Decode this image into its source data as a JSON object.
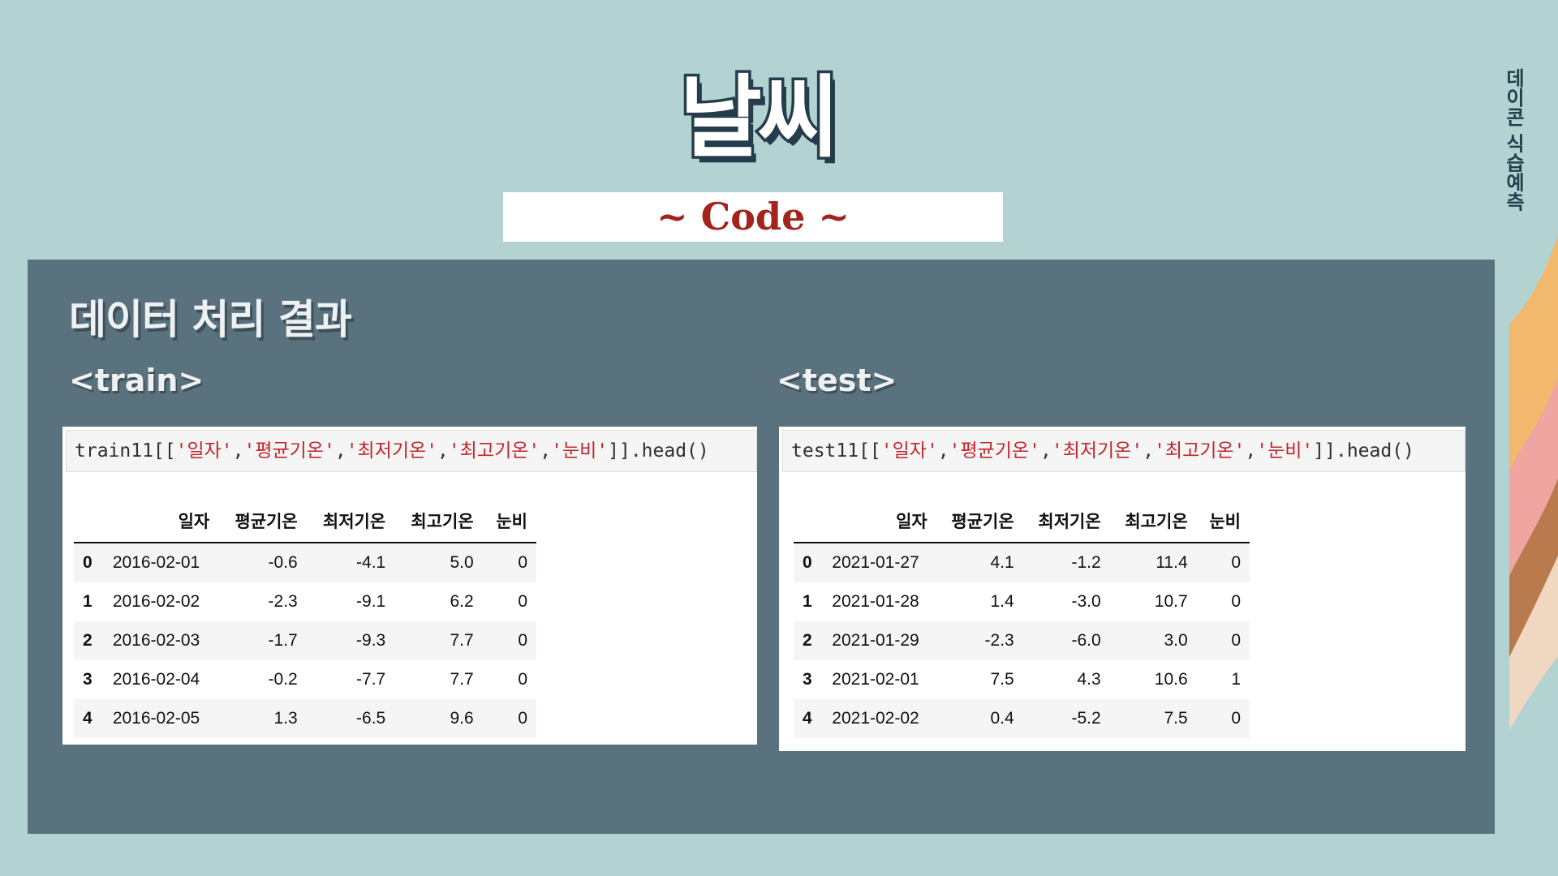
{
  "title": "날씨",
  "subtitle": "~ Code ~",
  "side_label": "데이콘 식습예측",
  "heading": "데이터 처리 결과",
  "train": {
    "label": "<train>",
    "code": {
      "prefix": "train11[[",
      "strings": [
        "'일자'",
        "'평균기온'",
        "'최저기온'",
        "'최고기온'",
        "'눈비'"
      ],
      "suffix": "]].head()"
    },
    "columns": [
      "일자",
      "평균기온",
      "최저기온",
      "최고기온",
      "눈비"
    ],
    "rows": [
      {
        "index": "0",
        "cells": [
          "2016-02-01",
          "-0.6",
          "-4.1",
          "5.0",
          "0"
        ]
      },
      {
        "index": "1",
        "cells": [
          "2016-02-02",
          "-2.3",
          "-9.1",
          "6.2",
          "0"
        ]
      },
      {
        "index": "2",
        "cells": [
          "2016-02-03",
          "-1.7",
          "-9.3",
          "7.7",
          "0"
        ]
      },
      {
        "index": "3",
        "cells": [
          "2016-02-04",
          "-0.2",
          "-7.7",
          "7.7",
          "0"
        ]
      },
      {
        "index": "4",
        "cells": [
          "2016-02-05",
          "1.3",
          "-6.5",
          "9.6",
          "0"
        ]
      }
    ]
  },
  "test": {
    "label": "<test>",
    "code": {
      "prefix": "test11[[",
      "strings": [
        "'일자'",
        "'평균기온'",
        "'최저기온'",
        "'최고기온'",
        "'눈비'"
      ],
      "suffix": "]].head()"
    },
    "columns": [
      "일자",
      "평균기온",
      "최저기온",
      "최고기온",
      "눈비"
    ],
    "rows": [
      {
        "index": "0",
        "cells": [
          "2021-01-27",
          "4.1",
          "-1.2",
          "11.4",
          "0"
        ]
      },
      {
        "index": "1",
        "cells": [
          "2021-01-28",
          "1.4",
          "-3.0",
          "10.7",
          "0"
        ]
      },
      {
        "index": "2",
        "cells": [
          "2021-01-29",
          "-2.3",
          "-6.0",
          "3.0",
          "0"
        ]
      },
      {
        "index": "3",
        "cells": [
          "2021-02-01",
          "7.5",
          "4.3",
          "10.6",
          "1"
        ]
      },
      {
        "index": "4",
        "cells": [
          "2021-02-02",
          "0.4",
          "-5.2",
          "7.5",
          "0"
        ]
      }
    ]
  },
  "colors": {
    "background": "#b3d3d3",
    "panel": "#5a717e",
    "accent_red": "#a3241d",
    "dark_navy": "#253c4a",
    "stripe_orange": "#f2b96e",
    "stripe_pink": "#f0a5a0",
    "stripe_brown": "#b97a4e",
    "stripe_cream": "#f0d7c1"
  }
}
